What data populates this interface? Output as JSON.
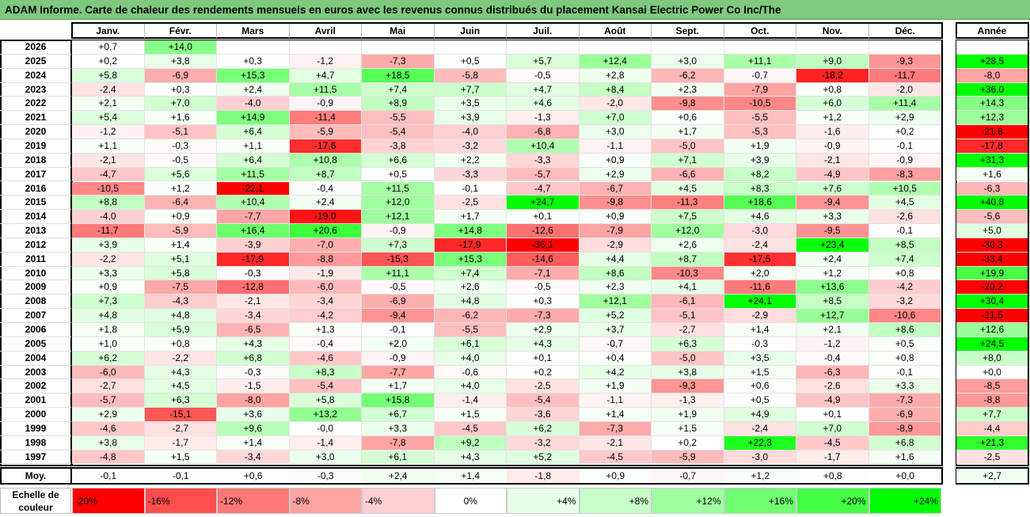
{
  "title": "ADAM Informe. Carte de chaleur des rendements mensuels en euros avec les revenus connus distribués du placement Kansai Electric Power Co Inc/The",
  "chart_data": {
    "type": "heatmap",
    "months": [
      "Janv.",
      "Févr.",
      "Mars",
      "Avril",
      "Mai",
      "Juin",
      "Juil.",
      "Août",
      "Sept.",
      "Oct.",
      "Nov.",
      "Déc."
    ],
    "year_header": "Année",
    "avg_label": "Moy.",
    "rows": [
      {
        "year": "2026",
        "values": [
          "+0,7",
          "+14,0",
          "",
          "",
          "",
          "",
          "",
          "",
          "",
          "",
          "",
          ""
        ],
        "annual": ""
      },
      {
        "year": "2025",
        "values": [
          "+0,2",
          "+3,8",
          "+0,3",
          "-1,2",
          "-7,3",
          "+0,5",
          "+5,7",
          "+12,4",
          "+3,0",
          "+11,1",
          "+9,0",
          "-9,3"
        ],
        "annual": "+28,5"
      },
      {
        "year": "2024",
        "values": [
          "+5,8",
          "-6,9",
          "+15,3",
          "+4,7",
          "+18,5",
          "-5,8",
          "-0,5",
          "+2,8",
          "-6,2",
          "-0,7",
          "-18,2",
          "-11,7"
        ],
        "annual": "-8,0"
      },
      {
        "year": "2023",
        "values": [
          "-2,4",
          "+0,3",
          "+2,4",
          "+11,5",
          "+7,4",
          "+7,7",
          "+4,7",
          "+8,4",
          "+2,3",
          "-7,9",
          "+0,8",
          "-2,0"
        ],
        "annual": "+36,0"
      },
      {
        "year": "2022",
        "values": [
          "+2,1",
          "+7,0",
          "-4,0",
          "-0,9",
          "+8,9",
          "+3,5",
          "+4,6",
          "-2,0",
          "-9,8",
          "-10,5",
          "+6,0",
          "+11,4"
        ],
        "annual": "+14,3"
      },
      {
        "year": "2021",
        "values": [
          "+5,4",
          "+1,6",
          "+14,9",
          "-11,4",
          "-5,5",
          "+3,9",
          "-1,3",
          "+7,0",
          "+0,6",
          "-5,5",
          "+1,2",
          "+2,9"
        ],
        "annual": "+12,3"
      },
      {
        "year": "2020",
        "values": [
          "-1,2",
          "-5,1",
          "+6,4",
          "-5,9",
          "-5,4",
          "-4,0",
          "-6,8",
          "+3,0",
          "+1,7",
          "-5,3",
          "-1,6",
          "+0,2"
        ],
        "annual": "-21,8"
      },
      {
        "year": "2019",
        "values": [
          "+1,1",
          "-0,3",
          "+1,1",
          "-17,6",
          "-3,8",
          "-3,2",
          "+10,4",
          "-1,1",
          "-5,0",
          "+1,9",
          "-0,9",
          "-0,1"
        ],
        "annual": "-17,8"
      },
      {
        "year": "2018",
        "values": [
          "-2,1",
          "-0,5",
          "+6,4",
          "+10,8",
          "+6,6",
          "+2,2",
          "-3,3",
          "+0,9",
          "+7,1",
          "+3,9",
          "-2,1",
          "-0,9"
        ],
        "annual": "+31,3"
      },
      {
        "year": "2017",
        "values": [
          "-4,7",
          "+5,6",
          "+11,5",
          "+8,7",
          "+0,5",
          "-3,3",
          "-5,7",
          "+2,9",
          "-6,6",
          "+8,2",
          "-4,9",
          "-8,3"
        ],
        "annual": "+1,6"
      },
      {
        "year": "2016",
        "values": [
          "-10,5",
          "+1,2",
          "-22,1",
          "-0,4",
          "+11,5",
          "-0,1",
          "-4,7",
          "-6,7",
          "+4,5",
          "+8,3",
          "+7,6",
          "+10,5"
        ],
        "annual": "-6,3"
      },
      {
        "year": "2015",
        "values": [
          "+8,8",
          "-6,4",
          "+10,4",
          "+2,4",
          "+12,0",
          "-2,5",
          "+24,7",
          "-9,8",
          "-11,3",
          "+18,6",
          "-9,4",
          "+4,5"
        ],
        "annual": "+40,8"
      },
      {
        "year": "2014",
        "values": [
          "-4,0",
          "+0,9",
          "-7,7",
          "-19,0",
          "+12,1",
          "+1,7",
          "+0,1",
          "+0,9",
          "+7,5",
          "+4,6",
          "+3,3",
          "-2,6"
        ],
        "annual": "-5,6"
      },
      {
        "year": "2013",
        "values": [
          "-11,7",
          "-5,9",
          "+16,4",
          "+20,6",
          "-0,9",
          "+14,8",
          "-12,6",
          "-7,9",
          "+12,0",
          "-3,0",
          "-9,5",
          "-0,1"
        ],
        "annual": "+5,0"
      },
      {
        "year": "2012",
        "values": [
          "+3,9",
          "+1,4",
          "-3,9",
          "-7,0",
          "+7,3",
          "-17,9",
          "-36,1",
          "-2,9",
          "+2,6",
          "-2,4",
          "+23,4",
          "+8,5"
        ],
        "annual": "-30,3"
      },
      {
        "year": "2011",
        "values": [
          "-2,2",
          "+5,1",
          "-17,9",
          "-8,8",
          "-15,3",
          "+15,3",
          "-14,6",
          "+4,4",
          "+8,7",
          "-17,5",
          "+2,4",
          "+7,4"
        ],
        "annual": "-33,4"
      },
      {
        "year": "2010",
        "values": [
          "+3,3",
          "+5,8",
          "-0,3",
          "-1,9",
          "+11,1",
          "+7,4",
          "-7,1",
          "+8,6",
          "-10,3",
          "+2,0",
          "+1,2",
          "+0,8"
        ],
        "annual": "+19,9"
      },
      {
        "year": "2009",
        "values": [
          "+0,9",
          "-7,5",
          "-12,8",
          "-6,0",
          "-0,5",
          "+2,6",
          "-0,5",
          "+2,3",
          "+4,1",
          "-11,6",
          "+13,6",
          "-4,2"
        ],
        "annual": "-20,2"
      },
      {
        "year": "2008",
        "values": [
          "+7,3",
          "-4,3",
          "-2,1",
          "-3,4",
          "-6,9",
          "+4,8",
          "+0,3",
          "+12,1",
          "-6,1",
          "+24,1",
          "+8,5",
          "-3,2"
        ],
        "annual": "+30,4"
      },
      {
        "year": "2007",
        "values": [
          "+4,8",
          "+4,8",
          "-3,4",
          "-4,2",
          "-9,4",
          "-6,2",
          "-7,3",
          "+5,2",
          "-5,1",
          "-2,9",
          "+12,7",
          "-10,6"
        ],
        "annual": "-21,5"
      },
      {
        "year": "2006",
        "values": [
          "+1,8",
          "+5,9",
          "-6,5",
          "+1,3",
          "-0,1",
          "-5,5",
          "+2,9",
          "+3,7",
          "-2,7",
          "+1,4",
          "+2,1",
          "+8,6"
        ],
        "annual": "+12,6"
      },
      {
        "year": "2005",
        "values": [
          "+1,0",
          "+0,8",
          "+4,3",
          "-0,4",
          "+2,0",
          "+6,1",
          "+4,3",
          "-0,7",
          "+6,3",
          "-0,3",
          "-1,2",
          "+0,5"
        ],
        "annual": "+24,5"
      },
      {
        "year": "2004",
        "values": [
          "+6,2",
          "-2,2",
          "+6,8",
          "-4,6",
          "-0,9",
          "+4,0",
          "+0,1",
          "+0,4",
          "-5,0",
          "+3,5",
          "-0,4",
          "+0,8"
        ],
        "annual": "+8,0"
      },
      {
        "year": "2003",
        "values": [
          "-6,0",
          "+4,3",
          "-0,3",
          "+8,3",
          "-7,7",
          "-0,6",
          "+0,2",
          "+4,2",
          "+3,8",
          "+1,5",
          "-6,3",
          "-0,1"
        ],
        "annual": "+0,0"
      },
      {
        "year": "2002",
        "values": [
          "-2,7",
          "+4,5",
          "-1,5",
          "-5,4",
          "+1,7",
          "+4,0",
          "-2,5",
          "+1,9",
          "-9,3",
          "+0,6",
          "-2,6",
          "+3,3"
        ],
        "annual": "-8,5"
      },
      {
        "year": "2001",
        "values": [
          "-5,7",
          "+6,3",
          "-8,0",
          "+5,8",
          "+15,8",
          "-1,4",
          "-5,4",
          "-1,1",
          "-1,3",
          "+0,5",
          "-4,9",
          "-7,3"
        ],
        "annual": "-8,8"
      },
      {
        "year": "2000",
        "values": [
          "+2,9",
          "-15,1",
          "+3,6",
          "+13,2",
          "+6,7",
          "+1,5",
          "-3,6",
          "+1,4",
          "+1,9",
          "+4,9",
          "+0,1",
          "-6,9"
        ],
        "annual": "+7,7"
      },
      {
        "year": "1999",
        "values": [
          "-4,6",
          "-2,7",
          "+9,6",
          "-0,0",
          "+3,3",
          "-4,5",
          "+6,2",
          "-7,3",
          "+1,5",
          "-2,4",
          "+7,0",
          "-8,9"
        ],
        "annual": "-4,4"
      },
      {
        "year": "1998",
        "values": [
          "+3,8",
          "-1,7",
          "+1,4",
          "-1,4",
          "-7,8",
          "+9,2",
          "-3,2",
          "-2,1",
          "+0,2",
          "+22,3",
          "-4,5",
          "+6,8"
        ],
        "annual": "+21,3"
      },
      {
        "year": "1997",
        "values": [
          "-4,8",
          "+1,5",
          "-3,4",
          "+3,0",
          "+6,1",
          "+4,3",
          "+5,2",
          "-4,5",
          "-5,9",
          "-3,0",
          "-1,7",
          "+1,6"
        ],
        "annual": "-2,5"
      }
    ],
    "averages": [
      "-0,1",
      "-0,1",
      "+0,6",
      "-0,3",
      "+2,4",
      "+1,4",
      "-1,8",
      "+0,9",
      "-0,7",
      "+1,2",
      "+0,8",
      "+0,0"
    ],
    "average_annual": "+2,7",
    "legend": {
      "label": "Echelle de couleur",
      "steps": [
        "-20%",
        "-16%",
        "-12%",
        "-8%",
        "-4%",
        "0%",
        "+4%",
        "+8%",
        "+12%",
        "+16%",
        "+20%",
        "+24%"
      ],
      "colors": [
        "#ff0000",
        "#ff4d4d",
        "#ff7777",
        "#ffa2a2",
        "#ffcfcf",
        "#ffffff",
        "#e6ffe6",
        "#c8ffc8",
        "#a0ff9f",
        "#70ff70",
        "#45ff45",
        "#00ff00"
      ]
    }
  }
}
